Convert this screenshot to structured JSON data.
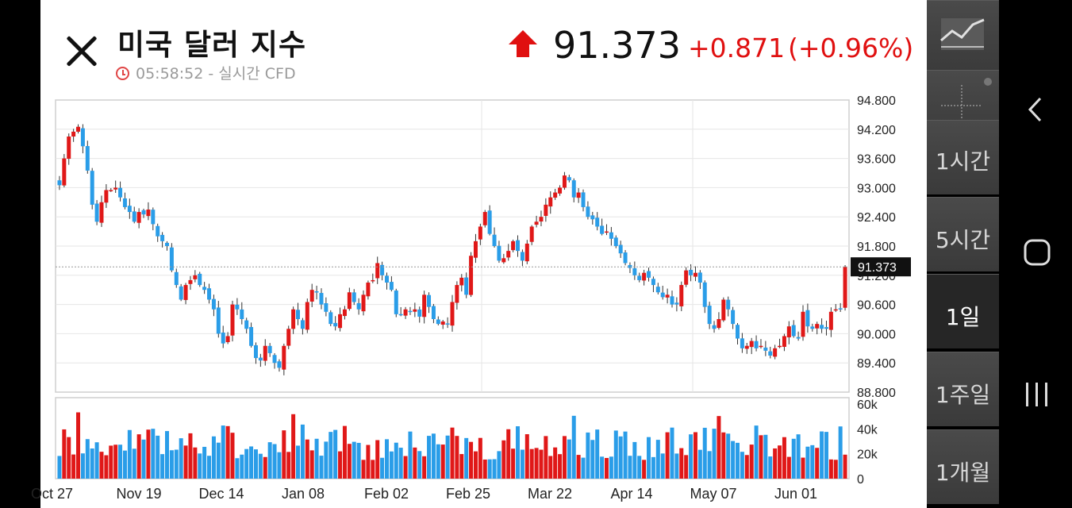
{
  "header": {
    "title": "미국 달러 지수",
    "time": "05:58:52",
    "time_suffix": " - 실시간 CFD",
    "price": "91.373",
    "change": "+0.871",
    "change_pct": "(+0.96%)",
    "up_color": "#e01010"
  },
  "toolbar": {
    "chart_type_icon": "line-chart-icon",
    "crosshair_icon": "crosshair-icon",
    "timeframes": [
      "1시간",
      "5시간",
      "1일",
      "1주일",
      "1개월"
    ],
    "active_timeframe": "1일"
  },
  "nav": {
    "back_icon": "back-icon",
    "home_icon": "home-icon",
    "recents_icon": "recents-icon"
  },
  "chart_data": {
    "type": "candlestick",
    "x_tick_labels": [
      "Oct 27",
      "Nov 19",
      "Dec 14",
      "Jan 08",
      "Feb 02",
      "Feb 25",
      "Mar 22",
      "Apr 14",
      "May 07",
      "Jun 01"
    ],
    "y_tick_labels": [
      "94.800",
      "94.200",
      "93.600",
      "93.000",
      "92.400",
      "91.800",
      "91.200",
      "90.600",
      "90.000",
      "89.400",
      "88.800"
    ],
    "ylim": [
      88.8,
      94.8
    ],
    "current_value": 91.373,
    "current_value_label": "91.373",
    "volume_tick_labels": [
      "60k",
      "40k",
      "20k",
      "0"
    ],
    "volume_ylim": [
      0,
      60000
    ],
    "colors": {
      "up": "#e01818",
      "down": "#2a9de8",
      "grid": "#e6e6e6"
    },
    "closes": [
      93.05,
      93.6,
      94.05,
      94.15,
      94.25,
      93.85,
      93.35,
      92.65,
      92.3,
      92.7,
      92.95,
      92.95,
      93.0,
      92.8,
      92.6,
      92.5,
      92.3,
      92.5,
      92.45,
      92.55,
      92.25,
      92.0,
      91.9,
      91.8,
      91.3,
      91.0,
      90.7,
      91.0,
      91.1,
      91.2,
      91.0,
      90.9,
      90.7,
      90.5,
      90.0,
      89.8,
      89.95,
      90.6,
      90.5,
      90.3,
      90.1,
      89.75,
      89.5,
      89.45,
      89.75,
      89.6,
      89.4,
      89.3,
      89.75,
      90.1,
      90.5,
      90.3,
      90.1,
      90.65,
      90.9,
      90.85,
      90.6,
      90.45,
      90.2,
      90.15,
      90.4,
      90.5,
      90.85,
      90.65,
      90.5,
      90.8,
      91.05,
      91.1,
      91.45,
      91.2,
      91.05,
      90.9,
      90.4,
      90.4,
      90.5,
      90.45,
      90.5,
      90.35,
      90.8,
      90.55,
      90.3,
      90.2,
      90.25,
      90.2,
      90.65,
      91.0,
      91.15,
      90.8,
      91.6,
      91.9,
      92.2,
      92.5,
      92.05,
      91.8,
      91.5,
      91.55,
      91.7,
      91.9,
      91.7,
      91.5,
      91.85,
      92.2,
      92.3,
      92.4,
      92.65,
      92.8,
      92.9,
      93.0,
      93.25,
      93.15,
      92.8,
      92.9,
      92.6,
      92.4,
      92.35,
      92.2,
      92.05,
      92.1,
      91.95,
      91.8,
      91.65,
      91.45,
      91.35,
      91.2,
      91.1,
      91.25,
      91.15,
      91.0,
      90.85,
      90.75,
      90.8,
      90.6,
      90.6,
      91.0,
      91.3,
      91.2,
      91.25,
      91.05,
      90.55,
      90.2,
      90.1,
      90.3,
      90.7,
      90.5,
      90.2,
      89.9,
      89.7,
      89.75,
      89.85,
      89.7,
      89.75,
      89.65,
      89.55,
      89.7,
      89.75,
      89.95,
      90.15,
      89.95,
      89.9,
      90.45,
      90.15,
      90.1,
      90.2,
      90.1,
      90.1,
      90.45,
      90.5,
      90.5,
      91.37
    ]
  }
}
